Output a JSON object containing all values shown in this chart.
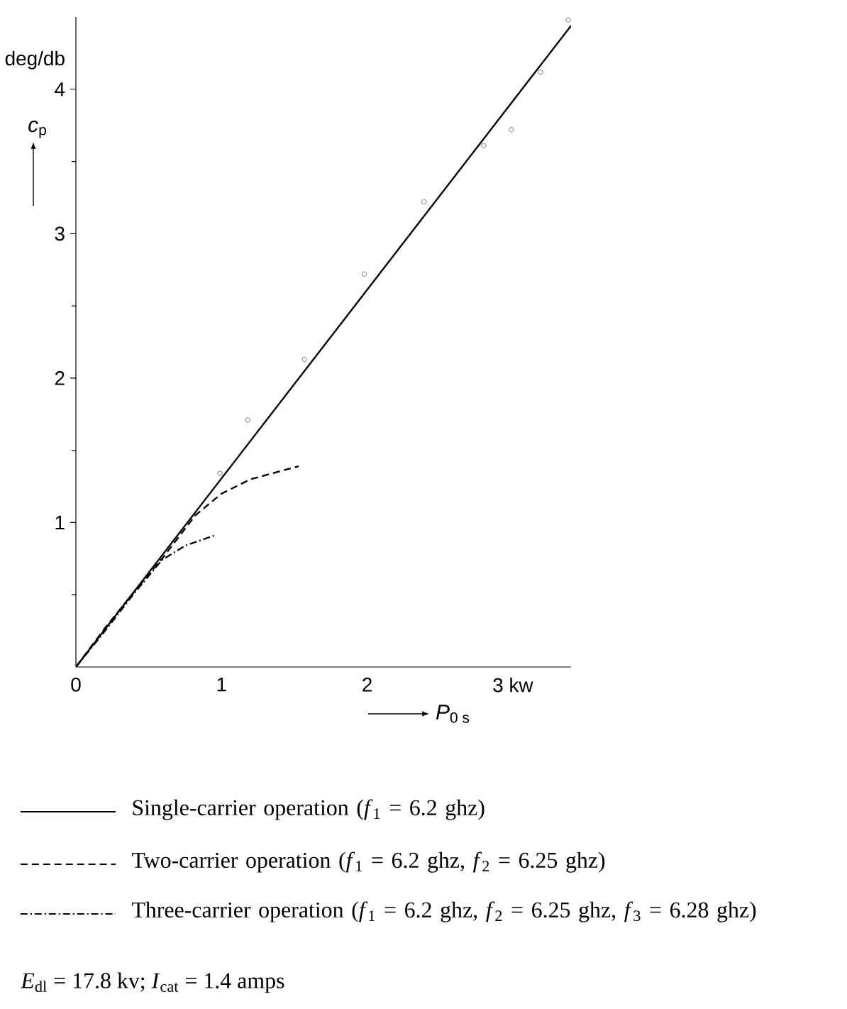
{
  "chart_data": {
    "type": "line",
    "xlabel": "*P*$_{0 s}$",
    "ylabel": "*c*$_{p}$",
    "annotations": [
      "deg/db",
      "*E*$_{dl}$ = 17.8 kv; *I*$_{cat}$ = 1.4 amps"
    ],
    "xlim": [
      0,
      3.4
    ],
    "ylim": [
      0,
      4.5
    ],
    "xticks": [
      0,
      1,
      2,
      {
        "value": 3,
        "label": "3 kw"
      }
    ],
    "yticks": [
      {
        "value": 0.5,
        "label": null
      },
      1,
      {
        "value": 1.5,
        "label": null
      },
      2,
      {
        "value": 2.5,
        "label": null
      },
      3,
      {
        "value": 3.5,
        "label": null
      },
      4
    ],
    "legend": "bottom",
    "series": [
      {
        "name": "Single-carrier operation  (*f*$_{1}$ = 6.2  ghz)",
        "color": "#000000",
        "line_style": "solid",
        "marker": "none",
        "x": [
          0,
          3.4
        ],
        "values": [
          0,
          4.44
        ]
      },
      {
        "type": "scatter",
        "color": "#555555",
        "marker": "circle",
        "x": [
          0.99,
          1.18,
          1.57,
          1.98,
          2.39,
          2.8,
          2.99,
          3.19,
          3.38
        ],
        "values": [
          1.34,
          1.71,
          2.13,
          2.72,
          3.22,
          3.61,
          3.72,
          4.12,
          4.48
        ]
      },
      {
        "name": "Two-carrier operation  (*f*$_{1}$ = 6.2  ghz, *f*$_{2}$ = 6.25 ghz)",
        "color": "#000000",
        "line_style": "dashed",
        "marker": "none",
        "x": [
          0,
          0.2,
          0.4,
          0.6,
          0.82,
          1.0,
          1.2,
          1.53
        ],
        "values": [
          0,
          0.27,
          0.52,
          0.76,
          1.05,
          1.2,
          1.3,
          1.39
        ]
      },
      {
        "name": "Three-carrier operation (*f*$_{1}$ = 6.2  ghz, *f*$_{2}$ = 6.25 ghz, *f*$_{3}$ = 6.28 ghz)",
        "color": "#000000",
        "line_style": "dashdot",
        "marker": "none",
        "x": [
          0,
          0.2,
          0.4,
          0.59,
          0.75,
          0.95
        ],
        "values": [
          0,
          0.25,
          0.51,
          0.74,
          0.84,
          0.91
        ]
      }
    ]
  }
}
